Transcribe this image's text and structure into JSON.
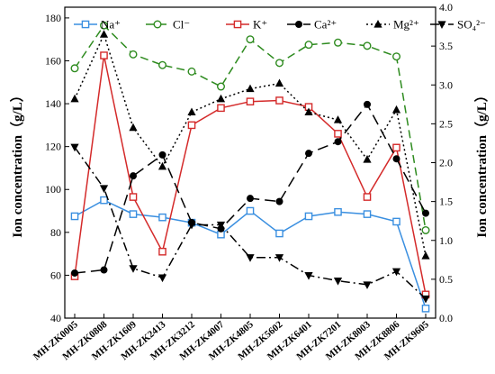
{
  "chart_data": {
    "type": "line",
    "categories": [
      "MH-ZK0005",
      "MH-ZK0808",
      "MH-ZK1609",
      "MH-ZK2413",
      "MH-ZK3212",
      "MH-ZK4007",
      "MH-ZK4805",
      "MH-ZK5602",
      "MH-ZK6401",
      "MH-ZK7201",
      "MH-ZK8003",
      "MH-ZK8806",
      "MH-ZK9605"
    ],
    "ylabel_left": "Ion concentration（g/L）",
    "ylabel_right": "Ion concentration（g/L）",
    "ylim_left": [
      40,
      185
    ],
    "ylim_right": [
      0,
      4.0
    ],
    "yticks_left": [
      "40",
      "60",
      "80",
      "100",
      "120",
      "140",
      "160",
      "180"
    ],
    "yticks_right": [
      "0.0",
      "0.5",
      "1.0",
      "1.5",
      "2.0",
      "2.5",
      "3.0",
      "3.5",
      "4.0"
    ],
    "legend_position": "top",
    "series": [
      {
        "name": "Na⁺",
        "axis": "left",
        "color": "#3a8fe0",
        "dash": "",
        "marker": "square-open",
        "values": [
          87.5,
          95,
          88.5,
          87,
          84.5,
          79,
          90,
          79.5,
          87.5,
          89.5,
          88.5,
          85,
          44.5
        ]
      },
      {
        "name": "Cl⁻",
        "axis": "left",
        "color": "#2e8b1f",
        "dash": "9,5",
        "marker": "circle-open",
        "values": [
          156.5,
          176.5,
          163,
          158,
          155,
          148,
          170,
          159,
          167.5,
          168.5,
          167,
          162,
          81
        ]
      },
      {
        "name": "K⁺",
        "axis": "left",
        "color": "#d42a2a",
        "dash": "",
        "marker": "square-open",
        "values": [
          59.5,
          162.5,
          96.5,
          71,
          130,
          138,
          141,
          141.5,
          138.5,
          126,
          96.5,
          119.5,
          51
        ]
      },
      {
        "name": "Ca²⁺",
        "axis": "right",
        "color": "#000000",
        "dash": "12,6",
        "marker": "circle-filled",
        "values": [
          0.58,
          0.62,
          1.83,
          2.1,
          1.23,
          1.15,
          1.54,
          1.5,
          2.12,
          2.27,
          2.75,
          2.05,
          1.35
        ]
      },
      {
        "name": "Mg²⁺",
        "axis": "right",
        "color": "#000000",
        "dash": "2,3",
        "marker": "triangle-up",
        "values": [
          2.82,
          3.65,
          2.45,
          1.95,
          2.65,
          2.82,
          2.95,
          3.02,
          2.65,
          2.55,
          2.04,
          2.68,
          0.8
        ]
      },
      {
        "name": "SO₄²⁻",
        "axis": "right",
        "color": "#000000",
        "dash": "10,4,2,4",
        "marker": "triangle-down",
        "values": [
          2.2,
          1.67,
          0.64,
          0.52,
          1.2,
          1.2,
          0.78,
          0.78,
          0.55,
          0.48,
          0.43,
          0.6,
          0.25
        ]
      }
    ]
  }
}
